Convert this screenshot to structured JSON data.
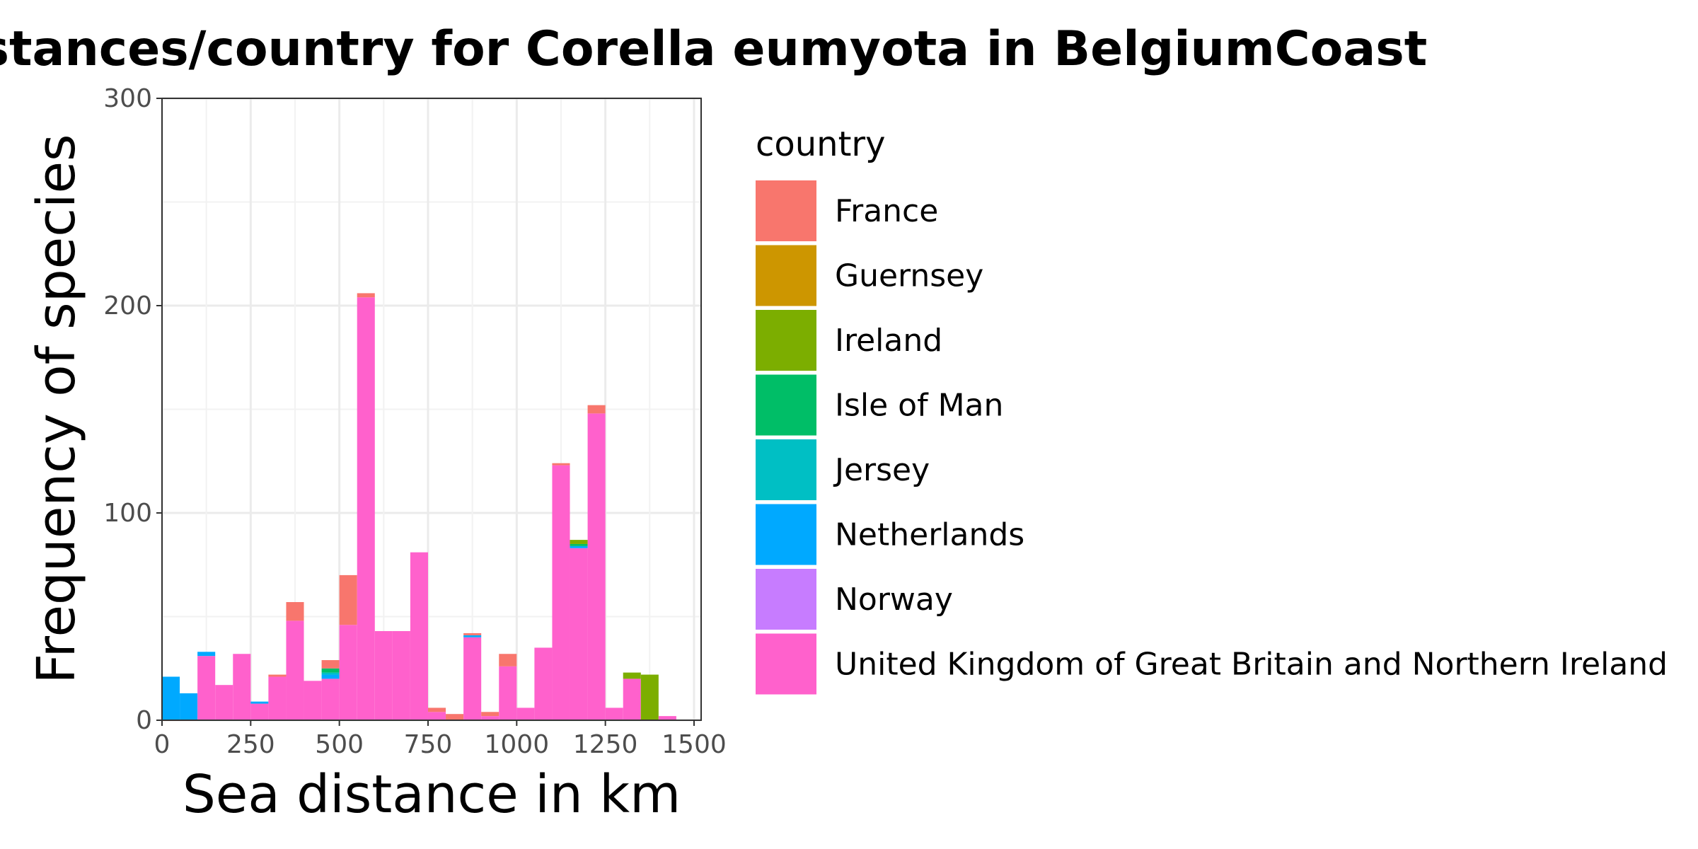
{
  "chart_data": {
    "type": "bar",
    "stacked": true,
    "title": "Distances/country for Corella eumyota in BelgiumCoast",
    "xlabel": "Sea distance in km",
    "ylabel": "Frequency of species",
    "xlim": [
      0,
      1520
    ],
    "ylim": [
      0,
      300
    ],
    "xticks": [
      0,
      250,
      500,
      750,
      1000,
      1250,
      1500
    ],
    "yticks": [
      0,
      100,
      200,
      300
    ],
    "bin_width": 50,
    "grid": true,
    "legend_title": "country",
    "legend_position": "right",
    "bins": [
      {
        "x0": 0,
        "x1": 50,
        "values": {
          "France": 0,
          "Guernsey": 0,
          "Ireland": 0,
          "Isle of Man": 0,
          "Jersey": 0,
          "Netherlands": 21,
          "Norway": 0,
          "United Kingdom of Great Britain and Northern Ireland": 0
        }
      },
      {
        "x0": 50,
        "x1": 100,
        "values": {
          "France": 0,
          "Guernsey": 0,
          "Ireland": 0,
          "Isle of Man": 0,
          "Jersey": 0,
          "Netherlands": 13,
          "Norway": 0,
          "United Kingdom of Great Britain and Northern Ireland": 0
        }
      },
      {
        "x0": 100,
        "x1": 150,
        "values": {
          "France": 0,
          "Guernsey": 0,
          "Ireland": 0,
          "Isle of Man": 0,
          "Jersey": 0,
          "Netherlands": 2,
          "Norway": 0,
          "United Kingdom of Great Britain and Northern Ireland": 31
        }
      },
      {
        "x0": 150,
        "x1": 200,
        "values": {
          "France": 0,
          "Guernsey": 0,
          "Ireland": 0,
          "Isle of Man": 0,
          "Jersey": 0,
          "Netherlands": 0,
          "Norway": 0,
          "United Kingdom of Great Britain and Northern Ireland": 17
        }
      },
      {
        "x0": 200,
        "x1": 250,
        "values": {
          "France": 0,
          "Guernsey": 0,
          "Ireland": 0,
          "Isle of Man": 0,
          "Jersey": 0,
          "Netherlands": 0,
          "Norway": 0,
          "United Kingdom of Great Britain and Northern Ireland": 32
        }
      },
      {
        "x0": 250,
        "x1": 300,
        "values": {
          "France": 0,
          "Guernsey": 0,
          "Ireland": 0,
          "Isle of Man": 0,
          "Jersey": 0,
          "Netherlands": 1,
          "Norway": 0,
          "United Kingdom of Great Britain and Northern Ireland": 8
        }
      },
      {
        "x0": 300,
        "x1": 350,
        "values": {
          "France": 1,
          "Guernsey": 0,
          "Ireland": 0,
          "Isle of Man": 0,
          "Jersey": 0,
          "Netherlands": 0,
          "Norway": 0,
          "United Kingdom of Great Britain and Northern Ireland": 21
        }
      },
      {
        "x0": 350,
        "x1": 400,
        "values": {
          "France": 9,
          "Guernsey": 0,
          "Ireland": 0,
          "Isle of Man": 0,
          "Jersey": 0,
          "Netherlands": 0,
          "Norway": 0,
          "United Kingdom of Great Britain and Northern Ireland": 48
        }
      },
      {
        "x0": 400,
        "x1": 450,
        "values": {
          "France": 0,
          "Guernsey": 0,
          "Ireland": 0,
          "Isle of Man": 0,
          "Jersey": 0,
          "Netherlands": 0,
          "Norway": 0,
          "United Kingdom of Great Britain and Northern Ireland": 19
        }
      },
      {
        "x0": 450,
        "x1": 500,
        "values": {
          "France": 4,
          "Guernsey": 0,
          "Ireland": 0,
          "Isle of Man": 2,
          "Jersey": 1,
          "Netherlands": 2,
          "Norway": 0,
          "United Kingdom of Great Britain and Northern Ireland": 20
        }
      },
      {
        "x0": 500,
        "x1": 550,
        "values": {
          "France": 24,
          "Guernsey": 0,
          "Ireland": 0,
          "Isle of Man": 0,
          "Jersey": 0,
          "Netherlands": 0,
          "Norway": 0,
          "United Kingdom of Great Britain and Northern Ireland": 46
        }
      },
      {
        "x0": 550,
        "x1": 600,
        "values": {
          "France": 2,
          "Guernsey": 0,
          "Ireland": 0,
          "Isle of Man": 0,
          "Jersey": 0,
          "Netherlands": 0,
          "Norway": 0,
          "United Kingdom of Great Britain and Northern Ireland": 204
        }
      },
      {
        "x0": 600,
        "x1": 650,
        "values": {
          "France": 0,
          "Guernsey": 0,
          "Ireland": 0,
          "Isle of Man": 0,
          "Jersey": 0,
          "Netherlands": 0,
          "Norway": 0,
          "United Kingdom of Great Britain and Northern Ireland": 43
        }
      },
      {
        "x0": 650,
        "x1": 700,
        "values": {
          "France": 0,
          "Guernsey": 0,
          "Ireland": 0,
          "Isle of Man": 0,
          "Jersey": 0,
          "Netherlands": 0,
          "Norway": 0,
          "United Kingdom of Great Britain and Northern Ireland": 43
        }
      },
      {
        "x0": 700,
        "x1": 750,
        "values": {
          "France": 0,
          "Guernsey": 0,
          "Ireland": 0,
          "Isle of Man": 0,
          "Jersey": 0,
          "Netherlands": 0,
          "Norway": 0,
          "United Kingdom of Great Britain and Northern Ireland": 81
        }
      },
      {
        "x0": 750,
        "x1": 800,
        "values": {
          "France": 2,
          "Guernsey": 0,
          "Ireland": 0,
          "Isle of Man": 0,
          "Jersey": 0,
          "Netherlands": 0,
          "Norway": 0,
          "United Kingdom of Great Britain and Northern Ireland": 4
        }
      },
      {
        "x0": 800,
        "x1": 850,
        "values": {
          "France": 3,
          "Guernsey": 0,
          "Ireland": 0,
          "Isle of Man": 0,
          "Jersey": 0,
          "Netherlands": 0,
          "Norway": 0,
          "United Kingdom of Great Britain and Northern Ireland": 0
        }
      },
      {
        "x0": 850,
        "x1": 900,
        "values": {
          "France": 1,
          "Guernsey": 0,
          "Ireland": 0,
          "Isle of Man": 0,
          "Jersey": 0,
          "Netherlands": 1,
          "Norway": 0,
          "United Kingdom of Great Britain and Northern Ireland": 40
        }
      },
      {
        "x0": 900,
        "x1": 950,
        "values": {
          "France": 2,
          "Guernsey": 0,
          "Ireland": 0,
          "Isle of Man": 0,
          "Jersey": 0,
          "Netherlands": 0,
          "Norway": 0,
          "United Kingdom of Great Britain and Northern Ireland": 2
        }
      },
      {
        "x0": 950,
        "x1": 1000,
        "values": {
          "France": 6,
          "Guernsey": 0,
          "Ireland": 0,
          "Isle of Man": 0,
          "Jersey": 0,
          "Netherlands": 0,
          "Norway": 0,
          "United Kingdom of Great Britain and Northern Ireland": 26
        }
      },
      {
        "x0": 1000,
        "x1": 1050,
        "values": {
          "France": 0,
          "Guernsey": 0,
          "Ireland": 0,
          "Isle of Man": 0,
          "Jersey": 0,
          "Netherlands": 0,
          "Norway": 0,
          "United Kingdom of Great Britain and Northern Ireland": 6
        }
      },
      {
        "x0": 1050,
        "x1": 1100,
        "values": {
          "France": 0,
          "Guernsey": 0,
          "Ireland": 0,
          "Isle of Man": 0,
          "Jersey": 0,
          "Netherlands": 0,
          "Norway": 0,
          "United Kingdom of Great Britain and Northern Ireland": 35
        }
      },
      {
        "x0": 1100,
        "x1": 1150,
        "values": {
          "France": 1,
          "Guernsey": 0,
          "Ireland": 0,
          "Isle of Man": 0,
          "Jersey": 0,
          "Netherlands": 0,
          "Norway": 0,
          "United Kingdom of Great Britain and Northern Ireland": 123
        }
      },
      {
        "x0": 1150,
        "x1": 1200,
        "values": {
          "France": 0,
          "Guernsey": 0,
          "Ireland": 2,
          "Isle of Man": 1,
          "Jersey": 0,
          "Netherlands": 1,
          "Norway": 0,
          "United Kingdom of Great Britain and Northern Ireland": 83
        }
      },
      {
        "x0": 1200,
        "x1": 1250,
        "values": {
          "France": 4,
          "Guernsey": 0,
          "Ireland": 0,
          "Isle of Man": 0,
          "Jersey": 0,
          "Netherlands": 0,
          "Norway": 0,
          "United Kingdom of Great Britain and Northern Ireland": 148
        }
      },
      {
        "x0": 1250,
        "x1": 1300,
        "values": {
          "France": 0,
          "Guernsey": 0,
          "Ireland": 0,
          "Isle of Man": 0,
          "Jersey": 0,
          "Netherlands": 0,
          "Norway": 0,
          "United Kingdom of Great Britain and Northern Ireland": 6
        }
      },
      {
        "x0": 1300,
        "x1": 1350,
        "values": {
          "France": 0,
          "Guernsey": 0,
          "Ireland": 3,
          "Isle of Man": 0,
          "Jersey": 0,
          "Netherlands": 0,
          "Norway": 0,
          "United Kingdom of Great Britain and Northern Ireland": 20
        }
      },
      {
        "x0": 1350,
        "x1": 1400,
        "values": {
          "France": 0,
          "Guernsey": 0,
          "Ireland": 22,
          "Isle of Man": 0,
          "Jersey": 0,
          "Netherlands": 0,
          "Norway": 0,
          "United Kingdom of Great Britain and Northern Ireland": 0
        }
      },
      {
        "x0": 1400,
        "x1": 1450,
        "values": {
          "France": 0,
          "Guernsey": 0,
          "Ireland": 0,
          "Isle of Man": 0,
          "Jersey": 0,
          "Netherlands": 0,
          "Norway": 0,
          "United Kingdom of Great Britain and Northern Ireland": 2
        }
      }
    ],
    "series": [
      {
        "name": "France",
        "color": "#F8766D"
      },
      {
        "name": "Guernsey",
        "color": "#CD9600"
      },
      {
        "name": "Ireland",
        "color": "#7CAE00"
      },
      {
        "name": "Isle of Man",
        "color": "#00BE67"
      },
      {
        "name": "Jersey",
        "color": "#00BFC4"
      },
      {
        "name": "Netherlands",
        "color": "#00A9FF"
      },
      {
        "name": "Norway",
        "color": "#C77CFF"
      },
      {
        "name": "United Kingdom of Great Britain and Northern Ireland",
        "color": "#FF61CC"
      }
    ]
  }
}
